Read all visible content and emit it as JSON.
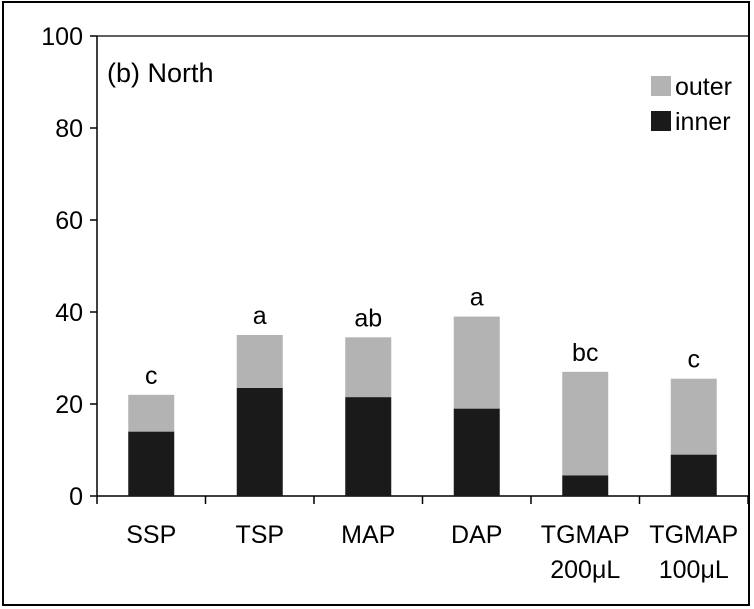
{
  "chart_data": {
    "type": "bar",
    "stacked": true,
    "title": "(b) North",
    "xlabel": "",
    "ylabel": "",
    "ylim": [
      0,
      100
    ],
    "yticks": [
      0,
      20,
      40,
      60,
      80,
      100
    ],
    "grid": false,
    "legend_position": "top-right",
    "categories": [
      [
        "SSP"
      ],
      [
        "TSP"
      ],
      [
        "MAP"
      ],
      [
        "DAP"
      ],
      [
        "TGMAP",
        "200μL"
      ],
      [
        "TGMAP",
        "100μL"
      ]
    ],
    "series": [
      {
        "name": "inner",
        "color": "#1a1a1a",
        "values": [
          14,
          23.5,
          21.5,
          19,
          4.5,
          9
        ]
      },
      {
        "name": "outer",
        "color": "#b3b3b3",
        "values": [
          8,
          11.5,
          13,
          20,
          22.5,
          16.5
        ]
      }
    ],
    "annotations": [
      "c",
      "a",
      "ab",
      "a",
      "bc",
      "c"
    ],
    "legend_order": [
      "outer",
      "inner"
    ]
  }
}
